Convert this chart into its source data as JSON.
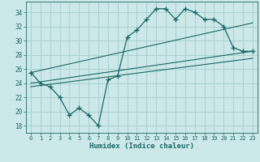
{
  "xlabel": "Humidex (Indice chaleur)",
  "bg_color": "#cce8e8",
  "grid_color": "#aad0d0",
  "line_color": "#1a6868",
  "xlim": [
    -0.5,
    23.5
  ],
  "ylim": [
    17,
    35.5
  ],
  "yticks": [
    18,
    20,
    22,
    24,
    26,
    28,
    30,
    32,
    34
  ],
  "xticks": [
    0,
    1,
    2,
    3,
    4,
    5,
    6,
    7,
    8,
    9,
    10,
    11,
    12,
    13,
    14,
    15,
    16,
    17,
    18,
    19,
    20,
    21,
    22,
    23
  ],
  "curve1_x": [
    0,
    1,
    2,
    3,
    4,
    5,
    6,
    7,
    8,
    9,
    10,
    11,
    12,
    13,
    14,
    15,
    16,
    17,
    18,
    19,
    20,
    21,
    22,
    23
  ],
  "curve1_y": [
    25.5,
    24.0,
    23.5,
    22.0,
    19.5,
    20.5,
    19.5,
    18.0,
    24.5,
    25.0,
    30.5,
    31.5,
    33.0,
    34.5,
    34.5,
    33.0,
    34.5,
    34.0,
    33.0,
    33.0,
    32.0,
    29.0,
    28.5,
    28.5
  ],
  "line1_x": [
    0,
    23
  ],
  "line1_y": [
    24.0,
    28.5
  ],
  "line2_x": [
    0,
    23
  ],
  "line2_y": [
    25.5,
    32.5
  ],
  "line3_x": [
    0,
    23
  ],
  "line3_y": [
    23.5,
    27.5
  ]
}
